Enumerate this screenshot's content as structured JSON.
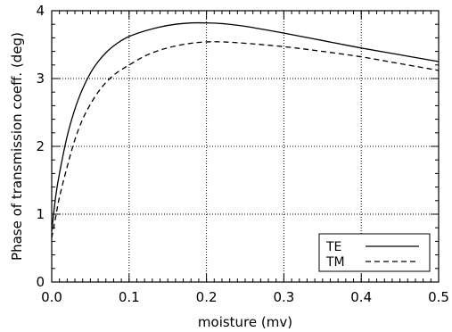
{
  "chart_data": {
    "type": "line",
    "title": "",
    "xlabel": "moisture (mv)",
    "ylabel": "Phase of transmission coeff. (deg)",
    "xlim": [
      0,
      0.5
    ],
    "ylim": [
      0,
      4
    ],
    "xticks": [
      0.0,
      0.1,
      0.2,
      0.3,
      0.4,
      0.5
    ],
    "xtick_labels": [
      "0.0",
      "0.1",
      "0.2",
      "0.3",
      "0.4",
      "0.5"
    ],
    "yticks": [
      0,
      1,
      2,
      3,
      4
    ],
    "ytick_labels": [
      "0",
      "1",
      "2",
      "3",
      "4"
    ],
    "grid": true,
    "legend_position": "bottom-right",
    "series": [
      {
        "name": "TE",
        "style": "solid",
        "color": "#000000",
        "x": [
          0.0,
          0.005,
          0.01,
          0.02,
          0.03,
          0.04,
          0.05,
          0.06,
          0.07,
          0.08,
          0.09,
          0.1,
          0.12,
          0.14,
          0.16,
          0.18,
          0.2,
          0.22,
          0.25,
          0.3,
          0.35,
          0.4,
          0.45,
          0.5
        ],
        "y": [
          0.75,
          1.25,
          1.6,
          2.15,
          2.55,
          2.85,
          3.08,
          3.25,
          3.38,
          3.48,
          3.56,
          3.62,
          3.7,
          3.76,
          3.8,
          3.82,
          3.82,
          3.81,
          3.77,
          3.67,
          3.56,
          3.45,
          3.35,
          3.25
        ]
      },
      {
        "name": "TM",
        "style": "dashed",
        "color": "#000000",
        "x": [
          0.0,
          0.005,
          0.01,
          0.02,
          0.03,
          0.04,
          0.05,
          0.06,
          0.07,
          0.08,
          0.09,
          0.1,
          0.12,
          0.14,
          0.16,
          0.18,
          0.2,
          0.22,
          0.25,
          0.3,
          0.35,
          0.4,
          0.45,
          0.5
        ],
        "y": [
          0.65,
          0.95,
          1.25,
          1.7,
          2.1,
          2.4,
          2.62,
          2.8,
          2.94,
          3.05,
          3.13,
          3.2,
          3.33,
          3.42,
          3.48,
          3.52,
          3.54,
          3.54,
          3.52,
          3.47,
          3.4,
          3.32,
          3.22,
          3.12
        ]
      }
    ]
  }
}
